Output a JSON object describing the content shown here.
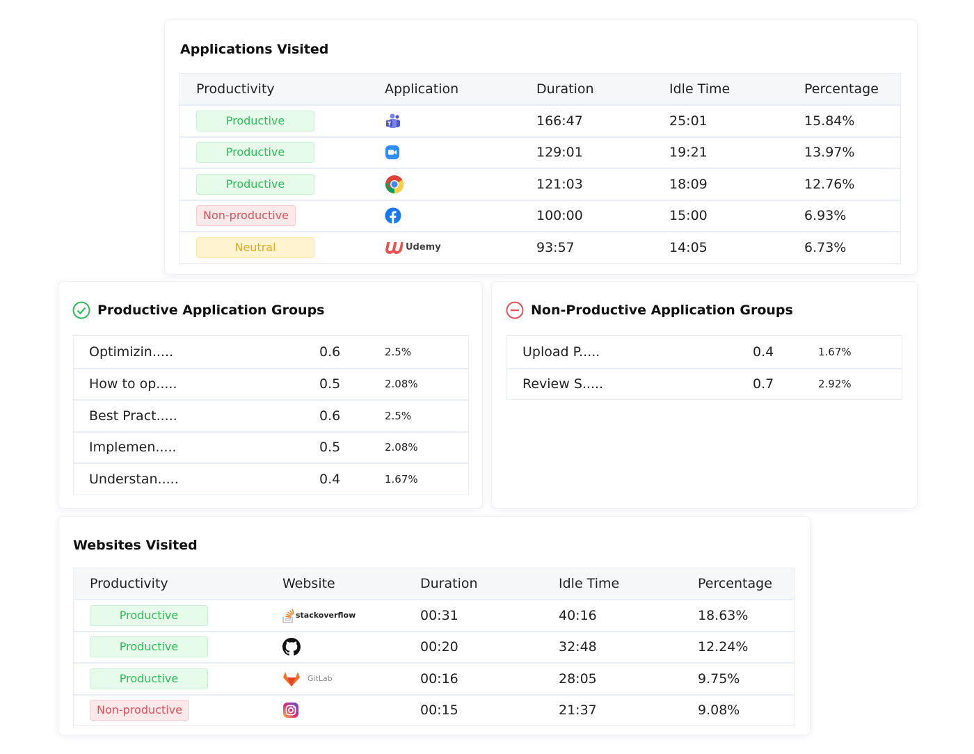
{
  "applications": {
    "title": "Applications Visited",
    "headers": [
      "Productivity",
      "Application",
      "Duration",
      "Idle Time",
      "Percentage"
    ],
    "rows": [
      {
        "productivity": "Productive",
        "app_icon": "teams-icon",
        "duration": "166:47",
        "idle": "25:01",
        "percentage": "15.84%"
      },
      {
        "productivity": "Productive",
        "app_icon": "zoom-icon",
        "duration": "129:01",
        "idle": "19:21",
        "percentage": "13.97%"
      },
      {
        "productivity": "Productive",
        "app_icon": "chrome-icon",
        "duration": "121:03",
        "idle": "18:09",
        "percentage": "12.76%"
      },
      {
        "productivity": "Non-productive",
        "app_icon": "facebook-icon",
        "duration": "100:00",
        "idle": "15:00",
        "percentage": "6.93%"
      },
      {
        "productivity": "Neutral",
        "app_icon": "udemy-icon",
        "app_label": "Udemy",
        "duration": "93:57",
        "idle": "14:05",
        "percentage": "6.73%"
      }
    ]
  },
  "productive_groups": {
    "title": "Productive Application Groups",
    "icon": "check-circle-icon",
    "color": "#2ebd59",
    "rows": [
      {
        "name": "Optimizin.....",
        "value": "0.6",
        "percentage": "2.5%"
      },
      {
        "name": "How to op.....",
        "value": "0.5",
        "percentage": "2.08%"
      },
      {
        "name": "Best Pract.....",
        "value": "0.6",
        "percentage": "2.5%"
      },
      {
        "name": "Implemen.....",
        "value": "0.5",
        "percentage": "2.08%"
      },
      {
        "name": "Understan.....",
        "value": "0.4",
        "percentage": "1.67%"
      }
    ]
  },
  "nonproductive_groups": {
    "title": "Non-Productive Application Groups",
    "icon": "minus-circle-icon",
    "color": "#e5505c",
    "rows": [
      {
        "name": "Upload P.....",
        "value": "0.4",
        "percentage": "1.67%"
      },
      {
        "name": "Review S.....",
        "value": "0.7",
        "percentage": "2.92%"
      }
    ]
  },
  "websites": {
    "title": "Websites Visited",
    "headers": [
      "Productivity",
      "Website",
      "Duration",
      "Idle Time",
      "Percentage"
    ],
    "rows": [
      {
        "productivity": "Productive",
        "site_icon": "stackoverflow-icon",
        "site_label": "stackoverflow",
        "duration": "00:31",
        "idle": "40:16",
        "percentage": "18.63%"
      },
      {
        "productivity": "Productive",
        "site_icon": "github-icon",
        "duration": "00:20",
        "idle": "32:48",
        "percentage": "12.24%"
      },
      {
        "productivity": "Productive",
        "site_icon": "gitlab-icon",
        "site_label": "GitLab",
        "duration": "00:16",
        "idle": "28:05",
        "percentage": "9.75%"
      },
      {
        "productivity": "Non-productive",
        "site_icon": "instagram-icon",
        "duration": "00:15",
        "idle": "21:37",
        "percentage": "9.08%"
      }
    ]
  }
}
